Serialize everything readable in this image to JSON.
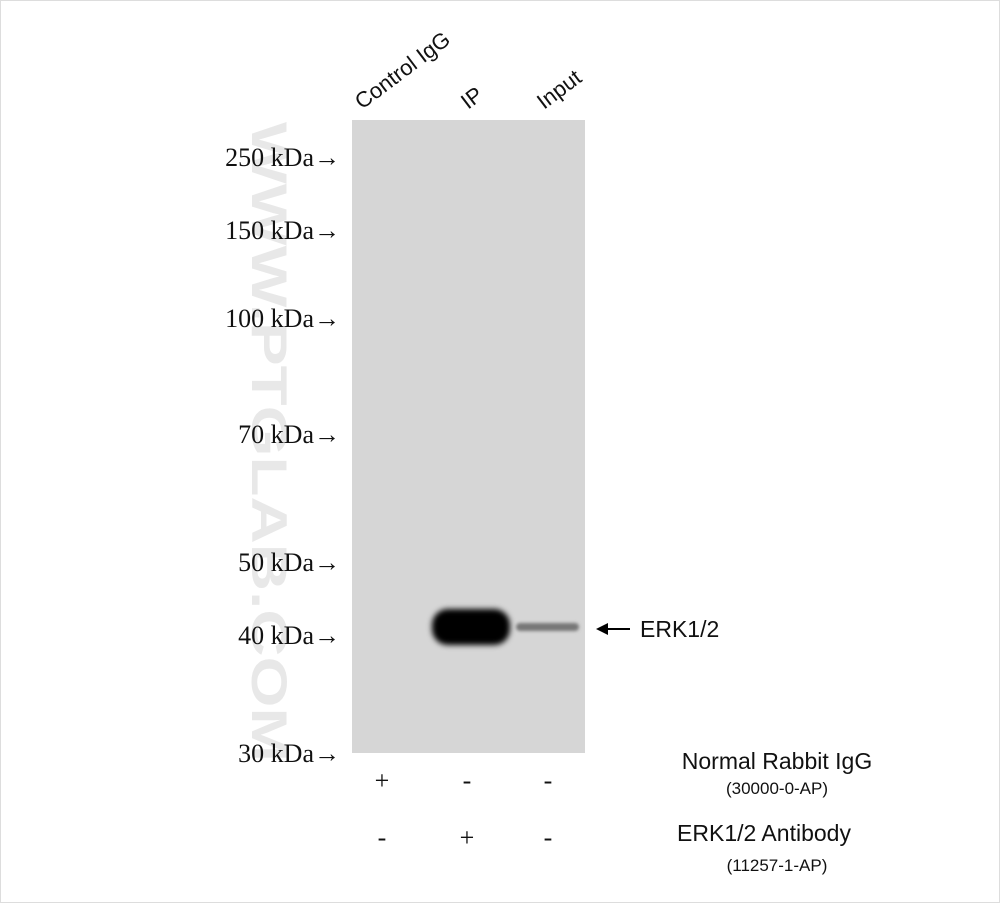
{
  "lanes": [
    "Control IgG",
    "IP",
    "Input"
  ],
  "markers": [
    "250 kDa→",
    "150 kDa→",
    "100 kDa→",
    "70 kDa→",
    "50 kDa→",
    "40 kDa→",
    "30 kDa→"
  ],
  "band_label": "ERK1/2",
  "reagents": [
    {
      "name": "Normal Rabbit IgG",
      "catalog": "(30000-0-AP)",
      "signs": [
        "+",
        "-",
        "-"
      ]
    },
    {
      "name": "ERK1/2 Antibody",
      "catalog": "(11257-1-AP)",
      "signs": [
        "-",
        "+",
        "-"
      ]
    }
  ],
  "watermark": "WWW.PTGLAB.COM"
}
